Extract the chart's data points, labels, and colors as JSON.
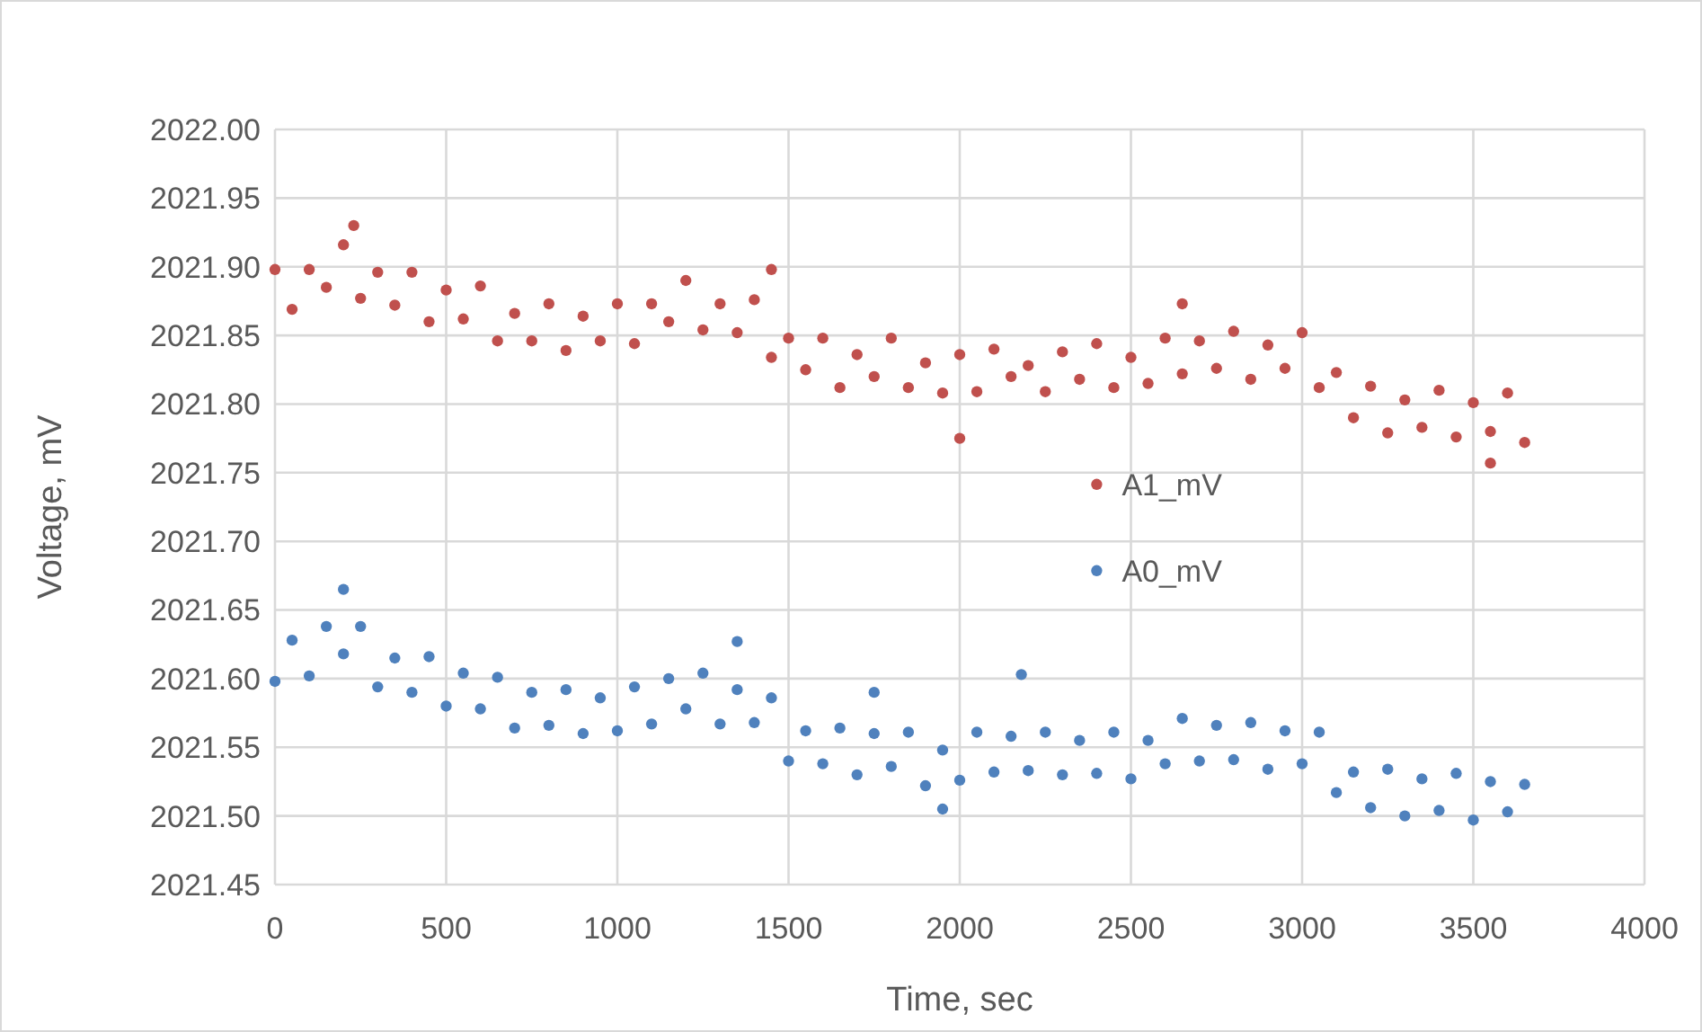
{
  "chart_data": {
    "type": "scatter",
    "xlabel": "Time, sec",
    "ylabel": "Voltage, mV",
    "xlim": [
      0,
      4000
    ],
    "xticks": [
      0,
      500,
      1000,
      1500,
      2000,
      2500,
      3000,
      3500,
      4000
    ],
    "ylim": [
      2021.45,
      2022.0
    ],
    "yticks": [
      {
        "value": 2021.45,
        "label": "2021.45"
      },
      {
        "value": 2021.5,
        "label": "2021.50"
      },
      {
        "value": 2021.55,
        "label": "2021.55"
      },
      {
        "value": 2021.6,
        "label": "2021.60"
      },
      {
        "value": 2021.65,
        "label": "2021.65"
      },
      {
        "value": 2021.7,
        "label": "2021.70"
      },
      {
        "value": 2021.75,
        "label": "2021.75"
      },
      {
        "value": 2021.8,
        "label": "2021.80"
      },
      {
        "value": 2021.85,
        "label": "2021.85"
      },
      {
        "value": 2021.9,
        "label": "2021.90"
      },
      {
        "value": 2021.95,
        "label": "2021.95"
      },
      {
        "value": 2022.0,
        "label": "2022.00"
      }
    ],
    "grid": true,
    "legend": "right",
    "marker": "circle",
    "series": [
      {
        "name": "A1_mV",
        "color": "#c0504d",
        "x": [
          0,
          50,
          100,
          150,
          200,
          250,
          300,
          350,
          400,
          450,
          500,
          550,
          600,
          650,
          700,
          750,
          800,
          850,
          900,
          950,
          1000,
          1050,
          1100,
          1150,
          1200,
          1250,
          1300,
          1350,
          1400,
          1450,
          1500,
          1550,
          1600,
          1650,
          1700,
          1750,
          1800,
          1850,
          1900,
          1950,
          2000,
          2050,
          2100,
          2150,
          2200,
          2250,
          2300,
          2350,
          2400,
          2450,
          2500,
          2550,
          2600,
          2650,
          2700,
          2750,
          2800,
          2850,
          2900,
          2950,
          3000,
          3050,
          3100,
          3150,
          3200,
          3250,
          3300,
          3350,
          3400,
          3450,
          3500,
          3550,
          3600,
          3650,
          2000,
          3550,
          2650,
          1450,
          230
        ],
        "values": [
          2021.898,
          2021.869,
          2021.898,
          2021.885,
          2021.916,
          2021.877,
          2021.896,
          2021.872,
          2021.896,
          2021.86,
          2021.883,
          2021.862,
          2021.886,
          2021.846,
          2021.866,
          2021.846,
          2021.873,
          2021.839,
          2021.864,
          2021.846,
          2021.873,
          2021.844,
          2021.873,
          2021.86,
          2021.89,
          2021.854,
          2021.873,
          2021.852,
          2021.876,
          2021.834,
          2021.848,
          2021.825,
          2021.848,
          2021.812,
          2021.836,
          2021.82,
          2021.848,
          2021.812,
          2021.83,
          2021.808,
          2021.836,
          2021.809,
          2021.84,
          2021.82,
          2021.828,
          2021.809,
          2021.838,
          2021.818,
          2021.844,
          2021.812,
          2021.834,
          2021.815,
          2021.848,
          2021.822,
          2021.846,
          2021.826,
          2021.853,
          2021.818,
          2021.843,
          2021.826,
          2021.852,
          2021.812,
          2021.823,
          2021.79,
          2021.813,
          2021.779,
          2021.803,
          2021.783,
          2021.81,
          2021.776,
          2021.801,
          2021.78,
          2021.808,
          2021.772,
          2021.775,
          2021.757,
          2021.873,
          2021.898,
          2021.93
        ]
      },
      {
        "name": "A0_mV",
        "color": "#4f81bd",
        "x": [
          0,
          50,
          100,
          150,
          200,
          250,
          300,
          350,
          400,
          450,
          500,
          550,
          600,
          650,
          700,
          750,
          800,
          850,
          900,
          950,
          1000,
          1050,
          1100,
          1150,
          1200,
          1250,
          1300,
          1350,
          1400,
          1450,
          1500,
          1550,
          1600,
          1650,
          1700,
          1750,
          1800,
          1850,
          1900,
          1950,
          2000,
          2050,
          2100,
          2150,
          2200,
          2250,
          2300,
          2350,
          2400,
          2450,
          2500,
          2550,
          2600,
          2650,
          2700,
          2750,
          2800,
          2850,
          2900,
          2950,
          3000,
          3050,
          3100,
          3150,
          3200,
          3250,
          3300,
          3350,
          3400,
          3450,
          3500,
          3550,
          3600,
          3650,
          200,
          1750,
          2180,
          1350,
          1950
        ],
        "values": [
          2021.598,
          2021.628,
          2021.602,
          2021.638,
          2021.618,
          2021.638,
          2021.594,
          2021.615,
          2021.59,
          2021.616,
          2021.58,
          2021.604,
          2021.578,
          2021.601,
          2021.564,
          2021.59,
          2021.566,
          2021.592,
          2021.56,
          2021.586,
          2021.562,
          2021.594,
          2021.567,
          2021.6,
          2021.578,
          2021.604,
          2021.567,
          2021.592,
          2021.568,
          2021.586,
          2021.54,
          2021.562,
          2021.538,
          2021.564,
          2021.53,
          2021.56,
          2021.536,
          2021.561,
          2021.522,
          2021.548,
          2021.526,
          2021.561,
          2021.532,
          2021.558,
          2021.533,
          2021.561,
          2021.53,
          2021.555,
          2021.531,
          2021.561,
          2021.527,
          2021.555,
          2021.538,
          2021.571,
          2021.54,
          2021.566,
          2021.541,
          2021.568,
          2021.534,
          2021.562,
          2021.538,
          2021.561,
          2021.517,
          2021.532,
          2021.506,
          2021.534,
          2021.5,
          2021.527,
          2021.504,
          2021.531,
          2021.497,
          2021.525,
          2021.503,
          2021.523,
          2021.665,
          2021.59,
          2021.603,
          2021.627,
          2021.505
        ]
      }
    ]
  }
}
